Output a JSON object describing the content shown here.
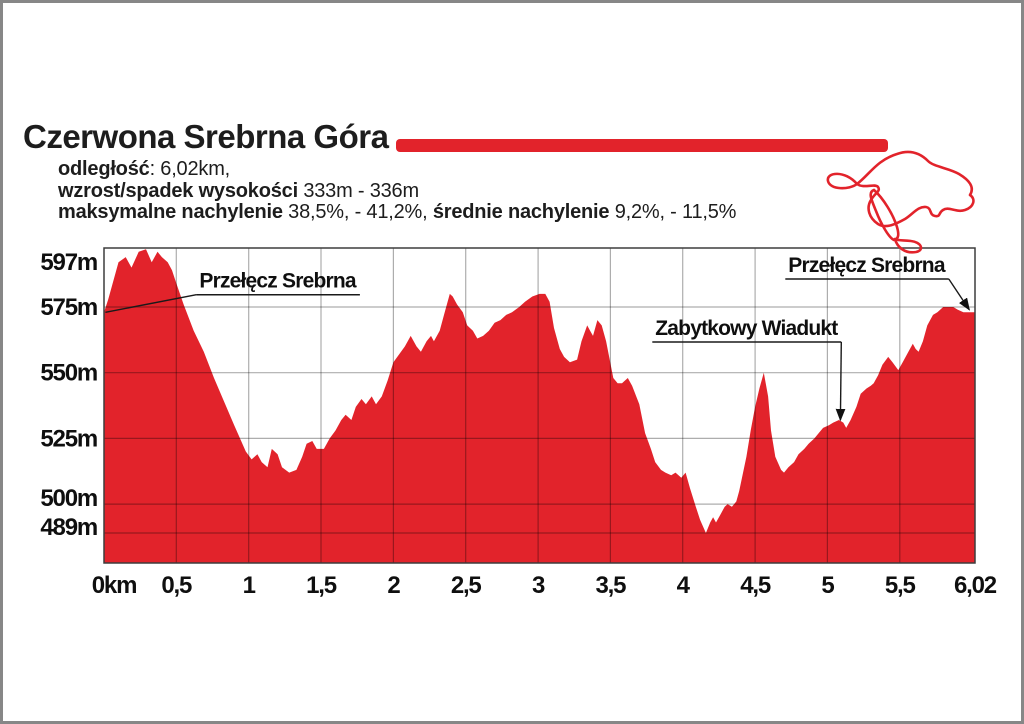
{
  "page": {
    "background": "#ffffff",
    "frame_color": "#878787"
  },
  "header": {
    "title": "Czerwona Srebrna Góra",
    "accent_bar_color": "#e2232b",
    "info_lines": [
      {
        "segments": [
          {
            "text": "odległość",
            "bold": true
          },
          {
            "text": ": 6,02km,",
            "bold": false
          }
        ]
      },
      {
        "segments": [
          {
            "text": "wzrost/spadek wysokości ",
            "bold": true
          },
          {
            "text": "333m - 336m",
            "bold": false
          }
        ]
      },
      {
        "segments": [
          {
            "text": "maksymalne nachylenie ",
            "bold": true
          },
          {
            "text": "38,5%, - 41,2%, ",
            "bold": false
          },
          {
            "text": "średnie nachylenie ",
            "bold": true
          },
          {
            "text": "9,2%, - 11,5%",
            "bold": false
          }
        ]
      }
    ]
  },
  "trail_map": {
    "color": "#e2232b"
  },
  "chart_data": {
    "type": "area",
    "title": "Czerwona Srebrna Góra - profil wysokości",
    "xlabel": "km",
    "ylabel": "m",
    "fill_color": "#e2232b",
    "grid_color": "rgba(0,0,0,0.32)",
    "border_color": "#3d3d3d",
    "xlim": [
      0,
      6.02
    ],
    "ylim": [
      489,
      597
    ],
    "x_ticks": [
      {
        "label": "0km",
        "km": 0
      },
      {
        "label": "0,5",
        "km": 0.5
      },
      {
        "label": "1",
        "km": 1
      },
      {
        "label": "1,5",
        "km": 1.5
      },
      {
        "label": "2",
        "km": 2
      },
      {
        "label": "2,5",
        "km": 2.5
      },
      {
        "label": "3",
        "km": 3
      },
      {
        "label": "3,5",
        "km": 3.5
      },
      {
        "label": "4",
        "km": 4
      },
      {
        "label": "4,5",
        "km": 4.5
      },
      {
        "label": "5",
        "km": 5
      },
      {
        "label": "5,5",
        "km": 5.5
      },
      {
        "label": "6,02",
        "km": 6.02
      }
    ],
    "y_ticks": [
      {
        "label": "597m",
        "m": 597
      },
      {
        "label": "575m",
        "m": 575
      },
      {
        "label": "550m",
        "m": 550
      },
      {
        "label": "525m",
        "m": 525
      },
      {
        "label": "500m",
        "m": 500
      },
      {
        "label": "489m",
        "m": 489
      }
    ],
    "annotations": [
      {
        "label": "Przełęcz Srebrna",
        "km_text": 1.2,
        "m_text": 585,
        "km_point": 0.01,
        "m_point": 573,
        "arrow": false
      },
      {
        "label": "Zabytkowy Wiadukt",
        "km_text": 4.44,
        "m_text": 567,
        "km_point": 5.09,
        "m_point": 532,
        "arrow": true
      },
      {
        "label": "Przełęcz Srebrna",
        "km_text": 5.27,
        "m_text": 591,
        "km_point": 5.98,
        "m_point": 574,
        "arrow": true
      }
    ],
    "profile_points": [
      [
        0,
        573
      ],
      [
        0.03,
        578
      ],
      [
        0.08,
        588
      ],
      [
        0.1,
        592
      ],
      [
        0.15,
        594
      ],
      [
        0.19,
        590
      ],
      [
        0.24,
        596
      ],
      [
        0.29,
        597
      ],
      [
        0.33,
        592
      ],
      [
        0.37,
        596
      ],
      [
        0.4,
        594
      ],
      [
        0.44,
        592
      ],
      [
        0.47,
        589
      ],
      [
        0.5,
        584
      ],
      [
        0.55,
        576
      ],
      [
        0.62,
        566
      ],
      [
        0.69,
        558
      ],
      [
        0.76,
        548
      ],
      [
        0.83,
        539
      ],
      [
        0.9,
        530
      ],
      [
        0.98,
        520
      ],
      [
        1.02,
        517
      ],
      [
        1.06,
        519
      ],
      [
        1.09,
        516
      ],
      [
        1.13,
        514
      ],
      [
        1.16,
        521
      ],
      [
        1.2,
        519
      ],
      [
        1.23,
        514
      ],
      [
        1.28,
        512
      ],
      [
        1.33,
        513
      ],
      [
        1.37,
        518
      ],
      [
        1.4,
        523
      ],
      [
        1.44,
        524
      ],
      [
        1.47,
        521
      ],
      [
        1.52,
        521
      ],
      [
        1.56,
        525
      ],
      [
        1.6,
        528
      ],
      [
        1.64,
        532
      ],
      [
        1.67,
        534
      ],
      [
        1.71,
        532
      ],
      [
        1.74,
        537
      ],
      [
        1.78,
        540
      ],
      [
        1.81,
        538
      ],
      [
        1.85,
        541
      ],
      [
        1.88,
        538
      ],
      [
        1.92,
        541
      ],
      [
        1.96,
        547
      ],
      [
        2.0,
        554
      ],
      [
        2.04,
        557
      ],
      [
        2.08,
        560
      ],
      [
        2.12,
        564
      ],
      [
        2.16,
        560
      ],
      [
        2.19,
        558
      ],
      [
        2.23,
        562
      ],
      [
        2.26,
        564
      ],
      [
        2.28,
        562
      ],
      [
        2.32,
        566
      ],
      [
        2.35,
        572
      ],
      [
        2.39,
        580
      ],
      [
        2.41,
        579
      ],
      [
        2.44,
        576
      ],
      [
        2.48,
        573
      ],
      [
        2.51,
        568
      ],
      [
        2.55,
        566
      ],
      [
        2.58,
        563
      ],
      [
        2.62,
        564
      ],
      [
        2.66,
        566
      ],
      [
        2.7,
        569
      ],
      [
        2.74,
        570
      ],
      [
        2.78,
        572
      ],
      [
        2.82,
        573
      ],
      [
        2.87,
        575
      ],
      [
        2.91,
        577
      ],
      [
        2.96,
        579
      ],
      [
        3.01,
        580
      ],
      [
        3.05,
        580
      ],
      [
        3.08,
        577
      ],
      [
        3.11,
        567
      ],
      [
        3.15,
        559
      ],
      [
        3.18,
        556
      ],
      [
        3.22,
        554
      ],
      [
        3.27,
        555
      ],
      [
        3.3,
        562
      ],
      [
        3.34,
        568
      ],
      [
        3.36,
        566
      ],
      [
        3.38,
        564
      ],
      [
        3.41,
        570
      ],
      [
        3.44,
        568
      ],
      [
        3.47,
        562
      ],
      [
        3.52,
        548
      ],
      [
        3.55,
        546
      ],
      [
        3.58,
        546
      ],
      [
        3.62,
        548
      ],
      [
        3.65,
        545
      ],
      [
        3.7,
        538
      ],
      [
        3.74,
        527
      ],
      [
        3.78,
        521
      ],
      [
        3.81,
        516
      ],
      [
        3.85,
        513
      ],
      [
        3.88,
        512
      ],
      [
        3.92,
        511
      ],
      [
        3.95,
        512
      ],
      [
        3.99,
        510
      ],
      [
        4.02,
        512
      ],
      [
        4.05,
        506
      ],
      [
        4.09,
        499
      ],
      [
        4.12,
        494
      ],
      [
        4.16,
        489
      ],
      [
        4.19,
        493
      ],
      [
        4.21,
        495
      ],
      [
        4.23,
        493
      ],
      [
        4.26,
        496
      ],
      [
        4.29,
        499
      ],
      [
        4.31,
        500
      ],
      [
        4.34,
        499
      ],
      [
        4.37,
        501
      ],
      [
        4.39,
        505
      ],
      [
        4.44,
        518
      ],
      [
        4.47,
        528
      ],
      [
        4.5,
        537
      ],
      [
        4.53,
        544
      ],
      [
        4.56,
        550
      ],
      [
        4.59,
        541
      ],
      [
        4.61,
        528
      ],
      [
        4.64,
        518
      ],
      [
        4.68,
        513
      ],
      [
        4.7,
        512
      ],
      [
        4.73,
        514
      ],
      [
        4.77,
        516
      ],
      [
        4.8,
        519
      ],
      [
        4.84,
        521
      ],
      [
        4.87,
        523
      ],
      [
        4.91,
        525
      ],
      [
        4.94,
        527
      ],
      [
        4.97,
        529
      ],
      [
        5.01,
        530
      ],
      [
        5.04,
        531
      ],
      [
        5.08,
        532
      ],
      [
        5.11,
        531
      ],
      [
        5.13,
        529
      ],
      [
        5.16,
        532
      ],
      [
        5.2,
        537
      ],
      [
        5.23,
        542
      ],
      [
        5.27,
        544
      ],
      [
        5.3,
        545
      ],
      [
        5.32,
        546
      ],
      [
        5.35,
        549
      ],
      [
        5.38,
        553
      ],
      [
        5.42,
        556
      ],
      [
        5.45,
        554
      ],
      [
        5.49,
        551
      ],
      [
        5.52,
        554
      ],
      [
        5.56,
        558
      ],
      [
        5.59,
        561
      ],
      [
        5.61,
        559
      ],
      [
        5.63,
        558
      ],
      [
        5.66,
        562
      ],
      [
        5.69,
        568
      ],
      [
        5.73,
        572
      ],
      [
        5.76,
        573
      ],
      [
        5.8,
        575
      ],
      [
        5.83,
        575
      ],
      [
        5.87,
        575
      ],
      [
        5.9,
        574
      ],
      [
        5.94,
        573
      ],
      [
        5.97,
        573
      ],
      [
        6.02,
        573
      ]
    ]
  }
}
